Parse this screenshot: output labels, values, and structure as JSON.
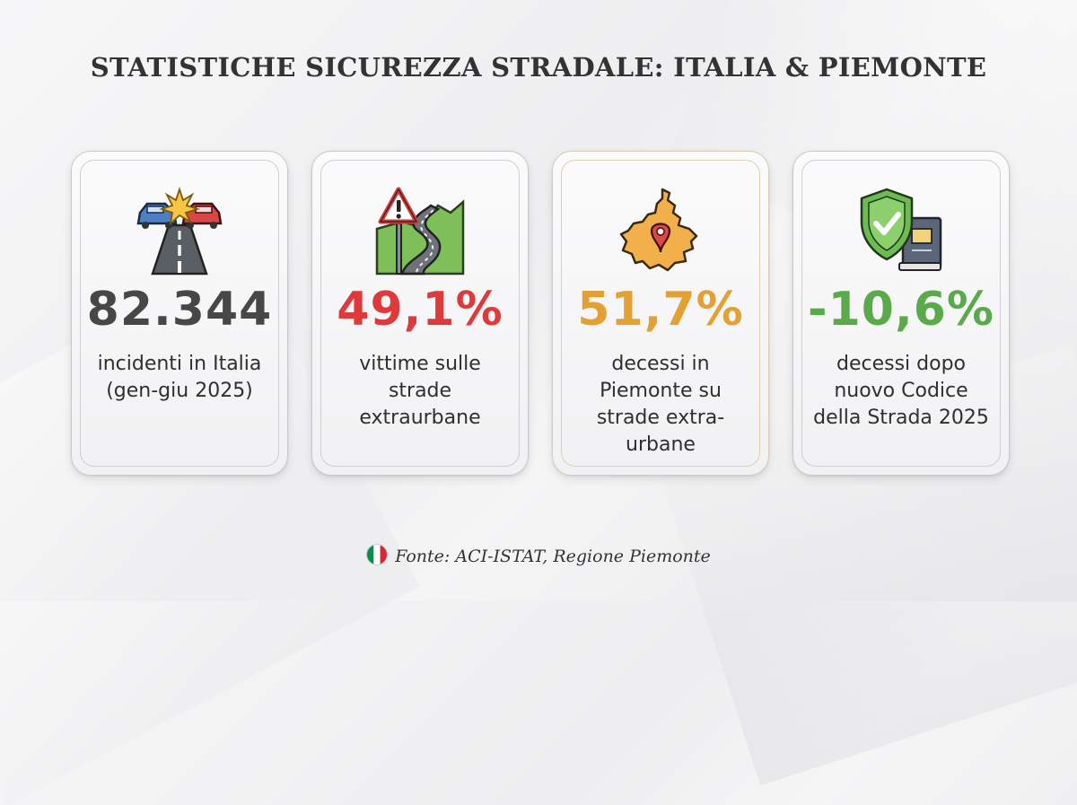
{
  "title": "STATISTICHE SICUREZZA STRADALE: ITALIA & PIEMONTE",
  "cards": [
    {
      "icon": "car-crash-road-icon",
      "stat": "82.344",
      "stat_color": "#474747",
      "desc": "incidenti in Italia (gen-giu 2025)"
    },
    {
      "icon": "warning-curvy-road-icon",
      "stat": "49,1%",
      "stat_color": "#e0393c",
      "desc": "vittime sulle strade extraurbane"
    },
    {
      "icon": "piemonte-map-pin-icon",
      "stat": "51,7%",
      "stat_color": "#e2a132",
      "desc": "decessi in Piemonte su strade extra-urbane"
    },
    {
      "icon": "shield-check-book-icon",
      "stat": "-10,6%",
      "stat_color": "#5aaa4a",
      "desc": "decessi dopo nuovo Codice della Strada 2025"
    }
  ],
  "footer": {
    "flag": "italian-flag-icon",
    "source": "Fonte: ACI-ISTAT, Regione Piemonte"
  }
}
